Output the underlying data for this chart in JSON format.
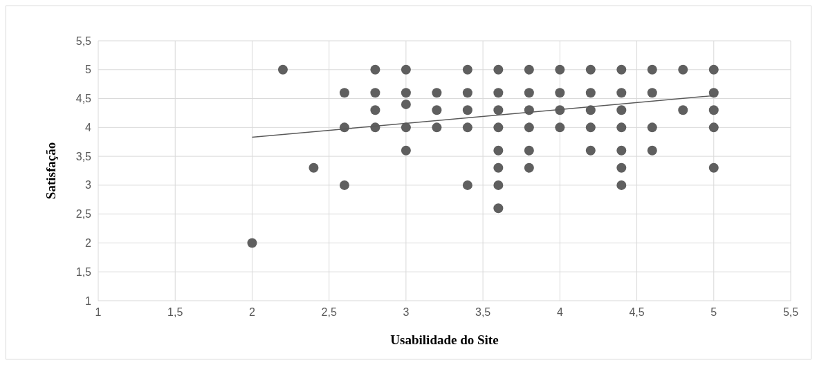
{
  "chart_data": {
    "type": "scatter",
    "xlabel": "Usabilidade do Site",
    "ylabel": "Satisfação",
    "xlim": [
      1,
      5.5
    ],
    "ylim": [
      1,
      5.5
    ],
    "xticks": [
      {
        "value": 1,
        "label": "1"
      },
      {
        "value": 1.5,
        "label": "1,5"
      },
      {
        "value": 2,
        "label": "2"
      },
      {
        "value": 2.5,
        "label": "2,5"
      },
      {
        "value": 3,
        "label": "3"
      },
      {
        "value": 3.5,
        "label": "3,5"
      },
      {
        "value": 4,
        "label": "4"
      },
      {
        "value": 4.5,
        "label": "4,5"
      },
      {
        "value": 5,
        "label": "5"
      },
      {
        "value": 5.5,
        "label": "5,5"
      }
    ],
    "yticks": [
      {
        "value": 1,
        "label": "1"
      },
      {
        "value": 1.5,
        "label": "1,5"
      },
      {
        "value": 2,
        "label": "2"
      },
      {
        "value": 2.5,
        "label": "2,5"
      },
      {
        "value": 3,
        "label": "3"
      },
      {
        "value": 3.5,
        "label": "3,5"
      },
      {
        "value": 4,
        "label": "4"
      },
      {
        "value": 4.5,
        "label": "4,5"
      },
      {
        "value": 5,
        "label": "5"
      },
      {
        "value": 5.5,
        "label": "5,5"
      }
    ],
    "grid": true,
    "marker": "circle",
    "series": [
      {
        "color": "#5f5f5f",
        "x": [
          2,
          2.2,
          2.4,
          2.6,
          2.6,
          2.6,
          2.8,
          2.8,
          2.8,
          2.8,
          3,
          3,
          3,
          3,
          3,
          3.2,
          3.2,
          3.2,
          3.4,
          3.4,
          3.4,
          3.4,
          3.4,
          3.6,
          3.6,
          3.6,
          3.6,
          3.6,
          3.6,
          3.6,
          3.6,
          3.8,
          3.8,
          3.8,
          3.8,
          3.8,
          3.8,
          4,
          4,
          4,
          4,
          4.2,
          4.2,
          4.2,
          4.2,
          4.2,
          4.4,
          4.4,
          4.4,
          4.4,
          4.4,
          4.4,
          4.4,
          4.6,
          4.6,
          4.6,
          4.6,
          4.8,
          4.8,
          5,
          5,
          5,
          5,
          5
        ],
        "values": [
          2,
          5,
          3.3,
          4.6,
          4,
          3,
          5,
          4.6,
          4.3,
          4,
          5,
          4.6,
          4.4,
          4,
          3.6,
          4.6,
          4.3,
          4,
          5,
          4.6,
          4.3,
          4,
          3,
          5,
          4.6,
          4.3,
          4,
          3.6,
          3.3,
          3,
          2.6,
          5,
          4.6,
          4.3,
          4,
          3.6,
          3.3,
          5,
          4.6,
          4.3,
          4,
          5,
          4.6,
          4.3,
          4,
          3.6,
          5,
          4.6,
          4.3,
          4,
          3.6,
          3.3,
          3,
          5,
          4.6,
          4,
          3.6,
          5,
          4.3,
          5,
          4.6,
          4.3,
          4,
          3.3
        ]
      },
      {
        "type": "line",
        "color": "#595959",
        "x": [
          2,
          5
        ],
        "values": [
          3.83,
          4.55
        ],
        "marker": "none",
        "line_style": "solid"
      }
    ]
  }
}
